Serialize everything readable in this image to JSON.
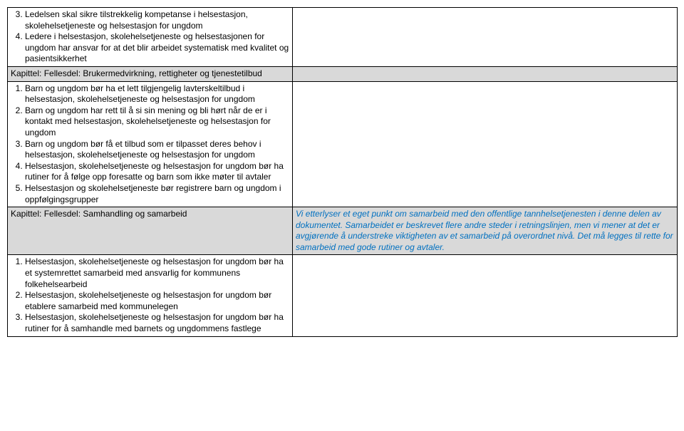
{
  "rows": [
    {
      "left_html": "<ol start='3'><li><span data-name='item-text' data-interactable='false' data-bind='rows.0.items.0'></span></li><li><span data-name='item-text' data-interactable='false' data-bind='rows.0.items.1'></span></li></ol>",
      "items": [
        "Ledelsen skal sikre tilstrekkelig kompetanse i helsestasjon, skolehelsetjeneste og helsestasjon for ungdom",
        "Ledere i helsestasjon, skolehelsetjeneste og helsestasjonen for ungdom har ansvar for at det blir arbeidet systematisk med kvalitet og pasientsikkerhet"
      ],
      "right": "",
      "shaded": false
    },
    {
      "left_text": "Kapittel: Fellesdel: Brukermedvirkning, rettigheter og tjenestetilbud",
      "right": "",
      "shaded": true
    },
    {
      "left_html": "<ol start='1'><li><span data-name='item-text' data-interactable='false' data-bind='rows.2.items.0'></span></li><li><span data-name='item-text' data-interactable='false' data-bind='rows.2.items.1'></span></li><li><span data-name='item-text' data-interactable='false' data-bind='rows.2.items.2'></span></li><li><span data-name='item-text' data-interactable='false' data-bind='rows.2.items.3'></span></li><li><span data-name='item-text' data-interactable='false' data-bind='rows.2.items.4'></span></li></ol>",
      "items": [
        "Barn og ungdom bør ha et lett tilgjengelig lavterskeltilbud i helsestasjon, skolehelsetjeneste og helsestasjon for ungdom",
        "Barn og ungdom har rett til å si sin mening og bli hørt når de er i kontakt med helsestasjon, skolehelsetjeneste og helsestasjon for ungdom",
        "Barn og ungdom bør få et tilbud som er tilpasset deres behov i helsestasjon, skolehelsetjeneste og helsestasjon for ungdom",
        "Helsestasjon, skolehelsetjeneste og helsestasjon for ungdom bør ha rutiner for å følge opp foresatte og barn som ikke møter til avtaler",
        "Helsestasjon og skolehelsetjeneste bør registrere barn og ungdom i oppfølgingsgrupper"
      ],
      "right": "",
      "shaded": false
    },
    {
      "left_text": "Kapittel: Fellesdel: Samhandling og samarbeid",
      "right_text": "Vi etterlyser et eget punkt om samarbeid med den offentlige tannhelsetjenesten i denne delen av dokumentet. Samarbeidet er beskrevet flere andre steder i retningslinjen, men vi mener at det er avgjørende å understreke viktigheten av et samarbeid på overordnet nivå. Det må legges til rette for samarbeid med gode rutiner og avtaler.",
      "shaded": true,
      "right_blue": true
    },
    {
      "left_html": "<ol start='1'><li><span data-name='item-text' data-interactable='false' data-bind='rows.4.items.0'></span></li><li><span data-name='item-text' data-interactable='false' data-bind='rows.4.items.1'></span></li><li><span data-name='item-text' data-interactable='false' data-bind='rows.4.items.2'></span></li></ol>",
      "items": [
        "Helsestasjon, skolehelsetjeneste og helsestasjon for ungdom bør ha et systemrettet samarbeid med ansvarlig for kommunens folkehelsearbeid",
        "Helsestasjon, skolehelsetjeneste og helsestasjon for ungdom bør etablere samarbeid med kommunelegen",
        "Helsestasjon, skolehelsetjeneste og helsestasjon for ungdom bør ha rutiner for å samhandle med barnets og ungdommens fastlege"
      ],
      "right": "",
      "shaded": false
    }
  ]
}
